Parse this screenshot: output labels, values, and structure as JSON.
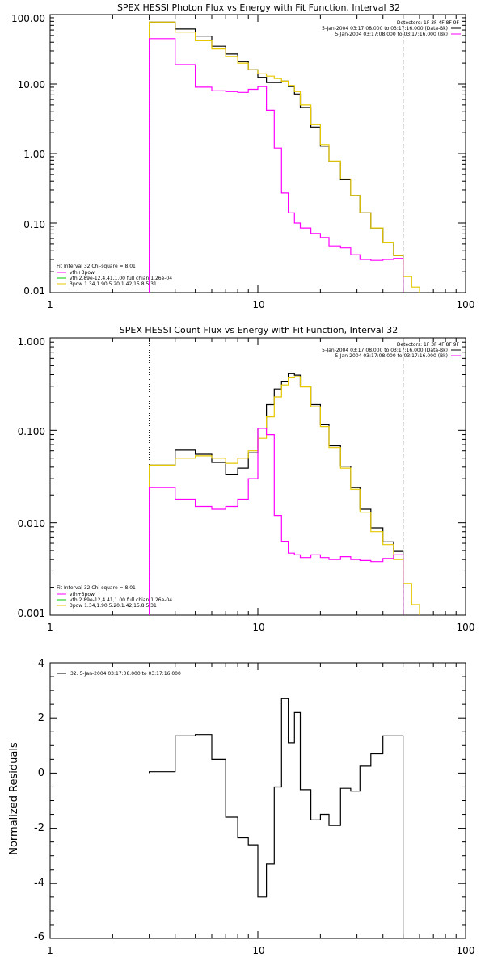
{
  "colors": {
    "data": "#000000",
    "thin_plus_3pow": "#ff00ff",
    "vth_component": "#00cc00",
    "pow3_component": "#e6c800"
  },
  "chart_data": [
    {
      "type": "line",
      "title": "SPEX HESSI Photon Flux vs Energy with Fit Function, Interval 32",
      "xlabel": "",
      "ylabel": "",
      "xscale": "log",
      "yscale": "log",
      "xlim": [
        1,
        100
      ],
      "ylim": [
        0.01,
        100
      ],
      "xticks": [
        1,
        10,
        100
      ],
      "xtick_labels": [
        "1",
        "10",
        "100"
      ],
      "yticks": [
        0.01,
        0.1,
        1,
        10,
        100
      ],
      "ytick_labels": [
        "0.01",
        "0.10",
        "1.00",
        "10.00",
        "100.00"
      ],
      "detectors_label": "Detectors: 1F 3F 4F 8F 9F",
      "legend_right": [
        "5-Jan-2004 03:17:08.000 to 03:17:16.000 (Data-Bk)",
        "5-Jan-2004 03:17:08.000 to 03:17:16.000 (Bk)"
      ],
      "legend_left": {
        "title": "Fit Interval 32    Chi-square = 8.01",
        "items": [
          "vth+3pow",
          "vth 2.89e-12,4.41,1.00   full chian 1.26e-04",
          "3pow 1.34,1.90,5.20,1.42,15.8,5.31"
        ]
      },
      "vlines": [
        3,
        50
      ],
      "series": [
        {
          "role": "data",
          "color": "#000000",
          "edges": [
            3,
            4,
            5,
            6,
            7,
            8,
            9,
            10,
            11,
            12,
            13,
            14,
            15,
            16,
            18,
            20,
            22,
            25,
            28,
            31,
            35,
            40,
            45,
            50
          ],
          "values": [
            78,
            62,
            49,
            35,
            27,
            21,
            16,
            12.5,
            10.5,
            10.5,
            11,
            9.2,
            7.2,
            4.6,
            2.4,
            1.28,
            0.76,
            0.42,
            0.25,
            0.14,
            0.085,
            0.052,
            0.034
          ]
        },
        {
          "role": "model",
          "color": "#e6c800",
          "edges": [
            3,
            4,
            5,
            6,
            7,
            8,
            9,
            10,
            11,
            12,
            13,
            14,
            15,
            16,
            18,
            20,
            22,
            25,
            28,
            31,
            35,
            40,
            45,
            50,
            55,
            60
          ],
          "values": [
            78,
            56,
            42,
            32,
            25,
            20,
            16,
            14,
            13,
            12,
            11,
            9.5,
            7.8,
            5,
            2.6,
            1.35,
            0.78,
            0.43,
            0.25,
            0.14,
            0.085,
            0.052,
            0.034,
            0.017,
            0.012
          ]
        },
        {
          "role": "background",
          "color": "#ff00ff",
          "edges": [
            3,
            4,
            5,
            6,
            7,
            8,
            9,
            10,
            11,
            12,
            13,
            14,
            15,
            16,
            18,
            20,
            22,
            25,
            28,
            31,
            35,
            40,
            45,
            50
          ],
          "values": [
            45,
            19,
            9,
            8,
            7.8,
            7.6,
            8.4,
            9.2,
            4.2,
            1.2,
            0.27,
            0.14,
            0.1,
            0.085,
            0.071,
            0.062,
            0.047,
            0.044,
            0.035,
            0.03,
            0.029,
            0.03,
            0.031
          ]
        }
      ]
    },
    {
      "type": "line",
      "title": "SPEX HESSI Count Flux vs Energy with Fit Function, Interval 32",
      "xlabel": "",
      "ylabel": "",
      "xscale": "log",
      "yscale": "log",
      "xlim": [
        1,
        100
      ],
      "ylim": [
        0.001,
        1
      ],
      "xticks": [
        1,
        10,
        100
      ],
      "xtick_labels": [
        "1",
        "10",
        "100"
      ],
      "yticks": [
        0.001,
        0.01,
        0.1,
        1
      ],
      "ytick_labels": [
        "0.001",
        "0.010",
        "0.100",
        "1.000"
      ],
      "detectors_label": "Detectors: 1F 3F 4F 8F 9F",
      "legend_right": [
        "5-Jan-2004 03:17:08.000 to 03:17:16.000 (Data-Bk)",
        "5-Jan-2004 03:17:08.000 to 03:17:16.000 (Bk)"
      ],
      "legend_left": {
        "title": "Fit Interval 32    Chi-square = 8.01",
        "items": [
          "vth+3pow",
          "vth 2.89e-12,4.41,1.00   full chian 1.26e-04",
          "3pow 1.34,1.90,5.20,1.42,15.8,5.31"
        ]
      },
      "vlines": [
        3,
        50
      ],
      "series": [
        {
          "role": "data",
          "color": "#000000",
          "edges": [
            3,
            4,
            5,
            6,
            7,
            8,
            9,
            10,
            11,
            12,
            13,
            14,
            15,
            16,
            18,
            20,
            22,
            25,
            28,
            31,
            35,
            40,
            45,
            50
          ],
          "values": [
            0.042,
            0.061,
            0.055,
            0.045,
            0.033,
            0.039,
            0.057,
            0.105,
            0.19,
            0.28,
            0.34,
            0.41,
            0.395,
            0.3,
            0.19,
            0.115,
            0.068,
            0.041,
            0.024,
            0.014,
            0.0088,
            0.0062,
            0.0049
          ]
        },
        {
          "role": "model",
          "color": "#e6c800",
          "edges": [
            3,
            4,
            5,
            6,
            7,
            8,
            9,
            10,
            11,
            12,
            13,
            14,
            15,
            16,
            18,
            20,
            22,
            25,
            28,
            31,
            35,
            40,
            45,
            50,
            55,
            60
          ],
          "values": [
            0.042,
            0.05,
            0.053,
            0.05,
            0.044,
            0.05,
            0.06,
            0.082,
            0.14,
            0.23,
            0.31,
            0.37,
            0.38,
            0.295,
            0.18,
            0.11,
            0.065,
            0.039,
            0.023,
            0.013,
            0.008,
            0.0058,
            0.004,
            0.0022,
            0.0013
          ]
        },
        {
          "role": "background",
          "color": "#ff00ff",
          "edges": [
            3,
            4,
            5,
            6,
            7,
            8,
            9,
            10,
            11,
            12,
            13,
            14,
            15,
            16,
            18,
            20,
            22,
            25,
            28,
            31,
            35,
            40,
            45,
            50
          ],
          "values": [
            0.024,
            0.018,
            0.015,
            0.014,
            0.015,
            0.018,
            0.03,
            0.105,
            0.09,
            0.012,
            0.0063,
            0.0047,
            0.0045,
            0.0042,
            0.0045,
            0.0042,
            0.004,
            0.0043,
            0.004,
            0.0039,
            0.0038,
            0.0041,
            0.0045
          ]
        }
      ]
    },
    {
      "type": "line",
      "title": "",
      "xlabel": "",
      "ylabel": "Normalized Residuals",
      "xscale": "log",
      "yscale": "linear",
      "xlim": [
        1,
        100
      ],
      "ylim": [
        -6,
        4
      ],
      "xticks": [
        1,
        10,
        100
      ],
      "xtick_labels": [
        "1",
        "10",
        "100"
      ],
      "yticks": [
        -6,
        -4,
        -2,
        0,
        2,
        4
      ],
      "ytick_labels": [
        "-6",
        "-4",
        "-2",
        "0",
        "2",
        "4"
      ],
      "legend": "32.  5-Jan-2004 03:17:08.000 to 03:17:16.000",
      "series": [
        {
          "role": "residuals",
          "color": "#000000",
          "edges": [
            3,
            4,
            5,
            6,
            7,
            8,
            9,
            10,
            11,
            12,
            13,
            14,
            15,
            16,
            18,
            20,
            22,
            25,
            28,
            31,
            35,
            40,
            45,
            50
          ],
          "values": [
            0.05,
            1.35,
            1.4,
            0.5,
            -1.6,
            -2.35,
            -2.6,
            -4.5,
            -3.3,
            -0.5,
            2.7,
            1.1,
            2.2,
            -0.6,
            -1.7,
            -1.5,
            -1.9,
            -0.55,
            -0.65,
            0.25,
            0.7,
            1.35,
            1.35
          ]
        }
      ]
    }
  ]
}
